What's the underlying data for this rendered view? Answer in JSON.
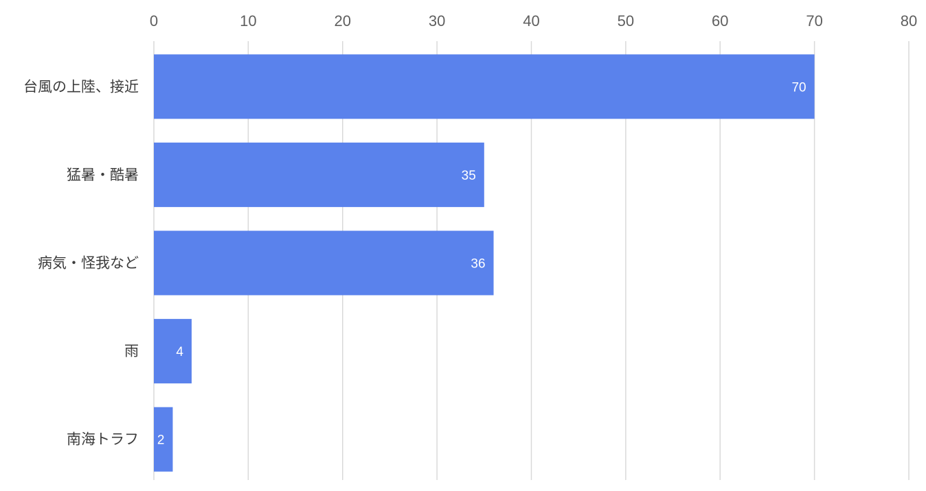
{
  "chart_data": {
    "type": "bar",
    "orientation": "horizontal",
    "categories": [
      "台風の上陸、接近",
      "猛暑・酷暑",
      "病気・怪我など",
      "雨",
      "南海トラフ"
    ],
    "values": [
      70,
      35,
      36,
      4,
      2
    ],
    "data_labels": [
      "70",
      "35",
      "36",
      "4",
      "2"
    ],
    "x_ticks": [
      "0",
      "10",
      "20",
      "30",
      "40",
      "50",
      "60",
      "70",
      "80"
    ],
    "xlim": [
      0,
      80
    ],
    "title": "",
    "xlabel": "",
    "ylabel": "",
    "axis_position": "top",
    "grid": true,
    "legend": "none",
    "colors": {
      "bar": "#5a82ec",
      "grid": "#d9d9d9",
      "label_text": "#ffffff"
    }
  }
}
